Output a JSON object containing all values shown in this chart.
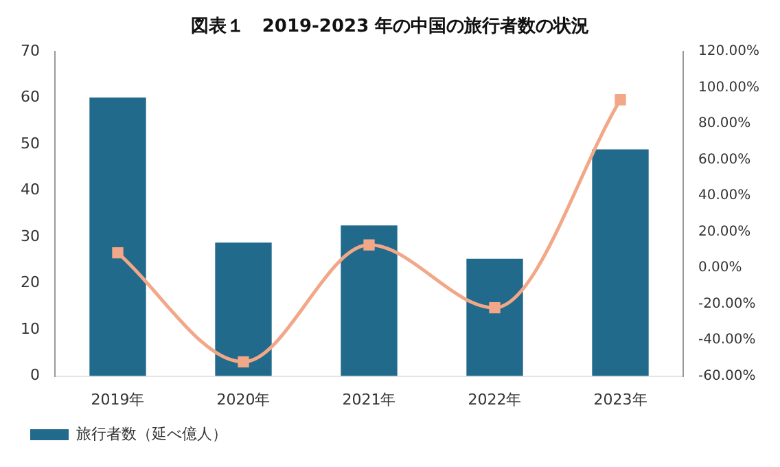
{
  "chart_data": {
    "type": "bar",
    "title": "図表１　2019-2023 年の中国の旅行者数の状況",
    "categories": [
      "2019年",
      "2020年",
      "2021年",
      "2022年",
      "2023年"
    ],
    "series": [
      {
        "name": "旅行者数（延べ億人）",
        "color": "#216a8c",
        "values": [
          60.1,
          28.8,
          32.5,
          25.3,
          48.9
        ]
      },
      {
        "type": "line",
        "axis": "y2",
        "color": "#f2a888",
        "marker": "square",
        "values": [
          8.4,
          -52.1,
          12.8,
          -22.1,
          93.3
        ]
      }
    ],
    "ylim": [
      0,
      70
    ],
    "yticks": [
      0,
      10,
      20,
      30,
      40,
      50,
      60,
      70
    ],
    "y2lim": [
      -60,
      120
    ],
    "y2ticks": [
      {
        "value": -60,
        "label": "-60.00%"
      },
      {
        "value": -40,
        "label": "-40.00%"
      },
      {
        "value": -20,
        "label": "-20.00%"
      },
      {
        "value": 0,
        "label": "0.00%"
      },
      {
        "value": 20,
        "label": "20.00%"
      },
      {
        "value": 40,
        "label": "40.00%"
      },
      {
        "value": 60,
        "label": "60.00%"
      },
      {
        "value": 80,
        "label": "80.00%"
      },
      {
        "value": 100,
        "label": "100.00%"
      },
      {
        "value": 120,
        "label": "120.00%"
      }
    ],
    "legend": "bottom",
    "grid": false
  }
}
